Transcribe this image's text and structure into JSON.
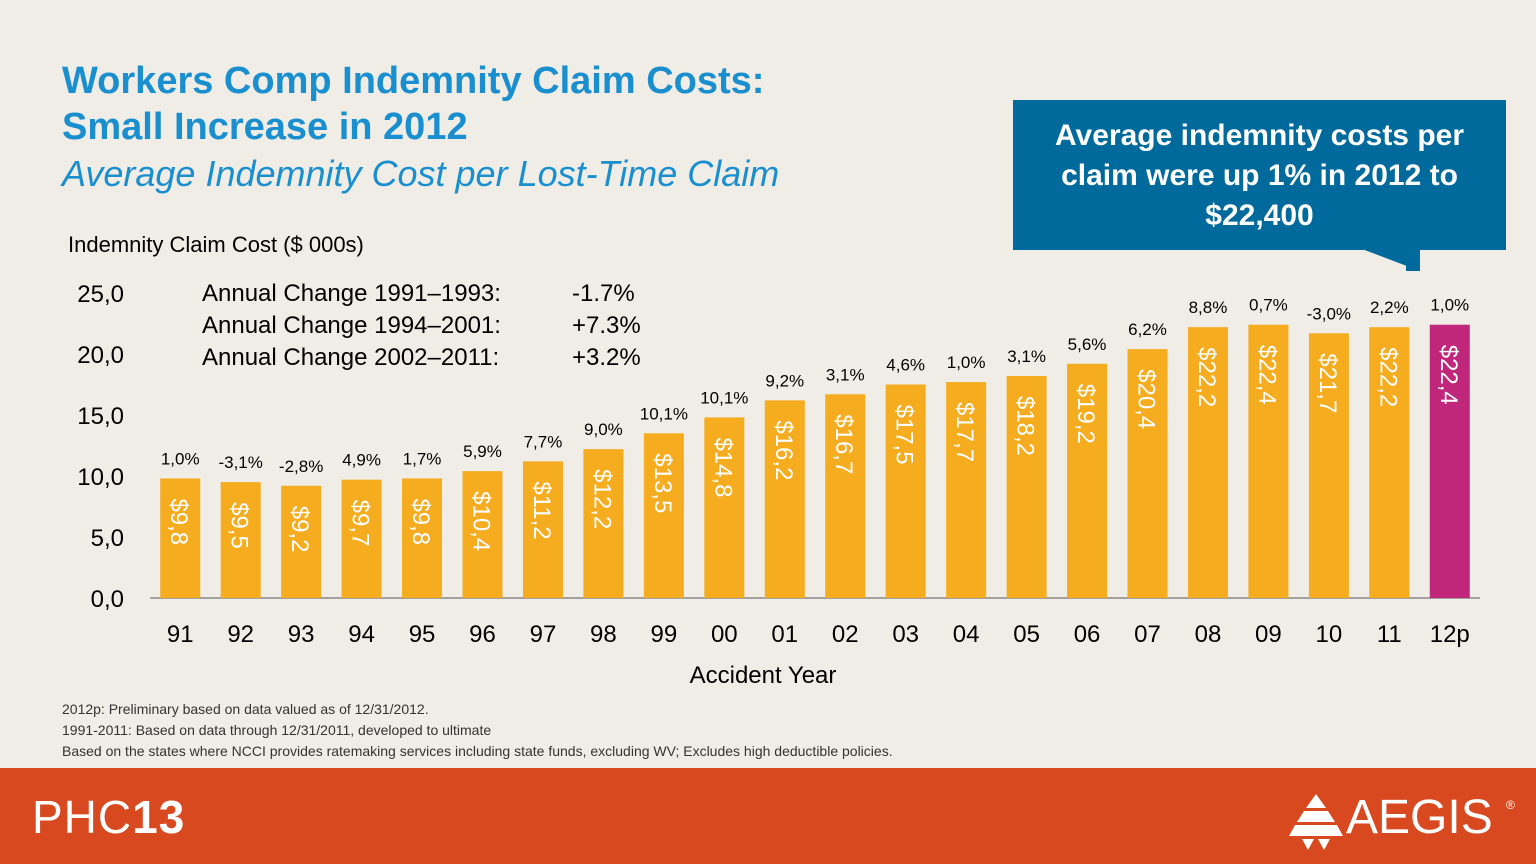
{
  "slide": {
    "title_line1": "Workers Comp Indemnity Claim Costs:",
    "title_line2": "Small Increase in 2012",
    "subtitle": "Average Indemnity Cost per Lost-Time Claim",
    "callout": "Average indemnity costs per claim were up 1% in 2012 to $22,400",
    "footnotes": [
      "2012p: Preliminary based on data valued as of 12/31/2012.",
      "1991-2011: Based on data through 12/31/2011, developed to ultimate",
      "Based on the states where NCCI provides ratemaking services including state funds, excluding WV; Excludes high deductible policies."
    ],
    "logo_left_light": "PHC",
    "logo_left_bold": "13",
    "logo_right": "AEGIS",
    "logo_right_reg": "®"
  },
  "colors": {
    "title": "#1a8fd0",
    "bar": "#f5ac1f",
    "bar_highlight": "#c0267a",
    "callout_bg": "#006a9c",
    "footer_bg": "#d9491f"
  },
  "chart_data": {
    "type": "bar",
    "ylabel": "Indemnity Claim Cost ($ 000s)",
    "xlabel": "Accident Year",
    "ylim": [
      0,
      25
    ],
    "yticks": [
      "0,0",
      "5,0",
      "10,0",
      "15,0",
      "20,0",
      "25,0"
    ],
    "ytick_values": [
      0,
      5,
      10,
      15,
      20,
      25
    ],
    "grid": false,
    "categories": [
      "91",
      "92",
      "93",
      "94",
      "95",
      "96",
      "97",
      "98",
      "99",
      "00",
      "01",
      "02",
      "03",
      "04",
      "05",
      "06",
      "07",
      "08",
      "09",
      "10",
      "11",
      "12p"
    ],
    "values": [
      9.8,
      9.5,
      9.2,
      9.7,
      9.8,
      10.4,
      11.2,
      12.2,
      13.5,
      14.8,
      16.2,
      16.7,
      17.5,
      17.7,
      18.2,
      19.2,
      20.4,
      22.2,
      22.4,
      21.7,
      22.2,
      22.4
    ],
    "value_labels": [
      "$9,8",
      "$9,5",
      "$9,2",
      "$9,7",
      "$9,8",
      "$10,4",
      "$11,2",
      "$12,2",
      "$13,5",
      "$14,8",
      "$16,2",
      "$16,7",
      "$17,5",
      "$17,7",
      "$18,2",
      "$19,2",
      "$20,4",
      "$22,2",
      "$22,4",
      "$21,7",
      "$22,2",
      "$22,4"
    ],
    "pct_labels": [
      "1,0%",
      "-3,1%",
      "-2,8%",
      "4,9%",
      "1,7%",
      "5,9%",
      "7,7%",
      "9,0%",
      "10,1%",
      "10,1%",
      "9,2%",
      "3,1%",
      "4,6%",
      "1,0%",
      "3,1%",
      "5,6%",
      "6,2%",
      "8,8%",
      "0,7%",
      "-3,0%",
      "2,2%",
      "1,0%"
    ],
    "highlight_index": 21,
    "annotations": [
      {
        "label": "Annual Change 1991–1993:",
        "value": "-1.7%"
      },
      {
        "label": "Annual Change 1994–2001:",
        "value": "+7.3%"
      },
      {
        "label": "Annual Change 2002–2011:",
        "value": "+3.2%"
      }
    ]
  }
}
